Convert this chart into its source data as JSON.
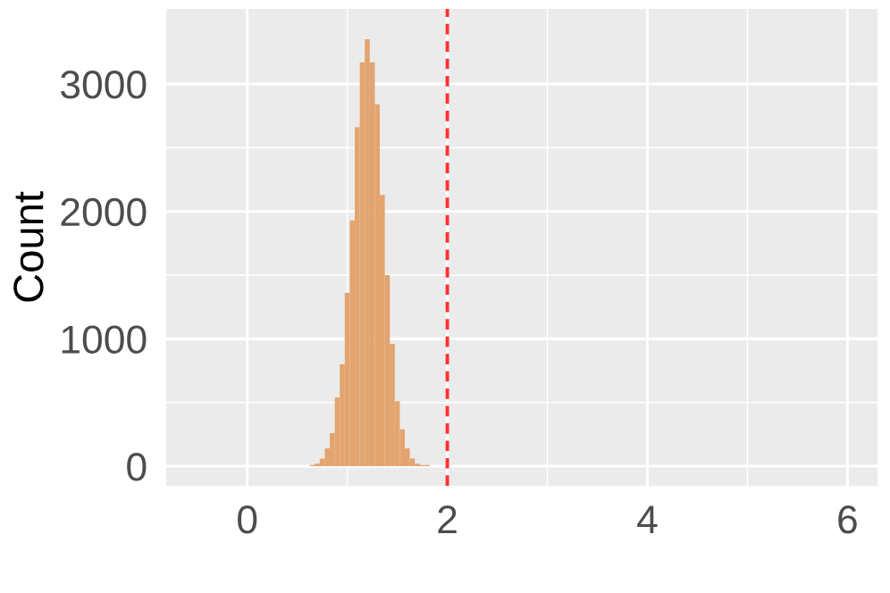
{
  "chart_data": {
    "type": "histogram",
    "ylabel": "Count",
    "bins": [
      0.525,
      0.575,
      0.625,
      0.675,
      0.725,
      0.775,
      0.825,
      0.875,
      0.925,
      0.975,
      1.025,
      1.075,
      1.125,
      1.175,
      1.225,
      1.275,
      1.325,
      1.375,
      1.425,
      1.475,
      1.525,
      1.575,
      1.625,
      1.675,
      1.725,
      1.775,
      1.825,
      1.875,
      1.925,
      1.975,
      2.025,
      2.075,
      2.125
    ],
    "values": [
      0,
      0,
      10,
      20,
      60,
      140,
      260,
      540,
      800,
      1360,
      1930,
      2660,
      3170,
      3350,
      3170,
      2840,
      2130,
      1500,
      960,
      510,
      290,
      140,
      60,
      20,
      10,
      10,
      0,
      0,
      0,
      0,
      0,
      0
    ],
    "color": "#e3a46f",
    "xlim": [
      -0.81,
      6.3
    ],
    "xticks": [
      0,
      2,
      4,
      6
    ],
    "ylim": [
      -154,
      3589
    ],
    "yticks": [
      0,
      1000,
      2000,
      3000
    ],
    "ref_lines": [
      {
        "axis": "x",
        "value": 2,
        "color": "#ff3333",
        "line_style": "dashed"
      }
    ],
    "grid": true
  }
}
